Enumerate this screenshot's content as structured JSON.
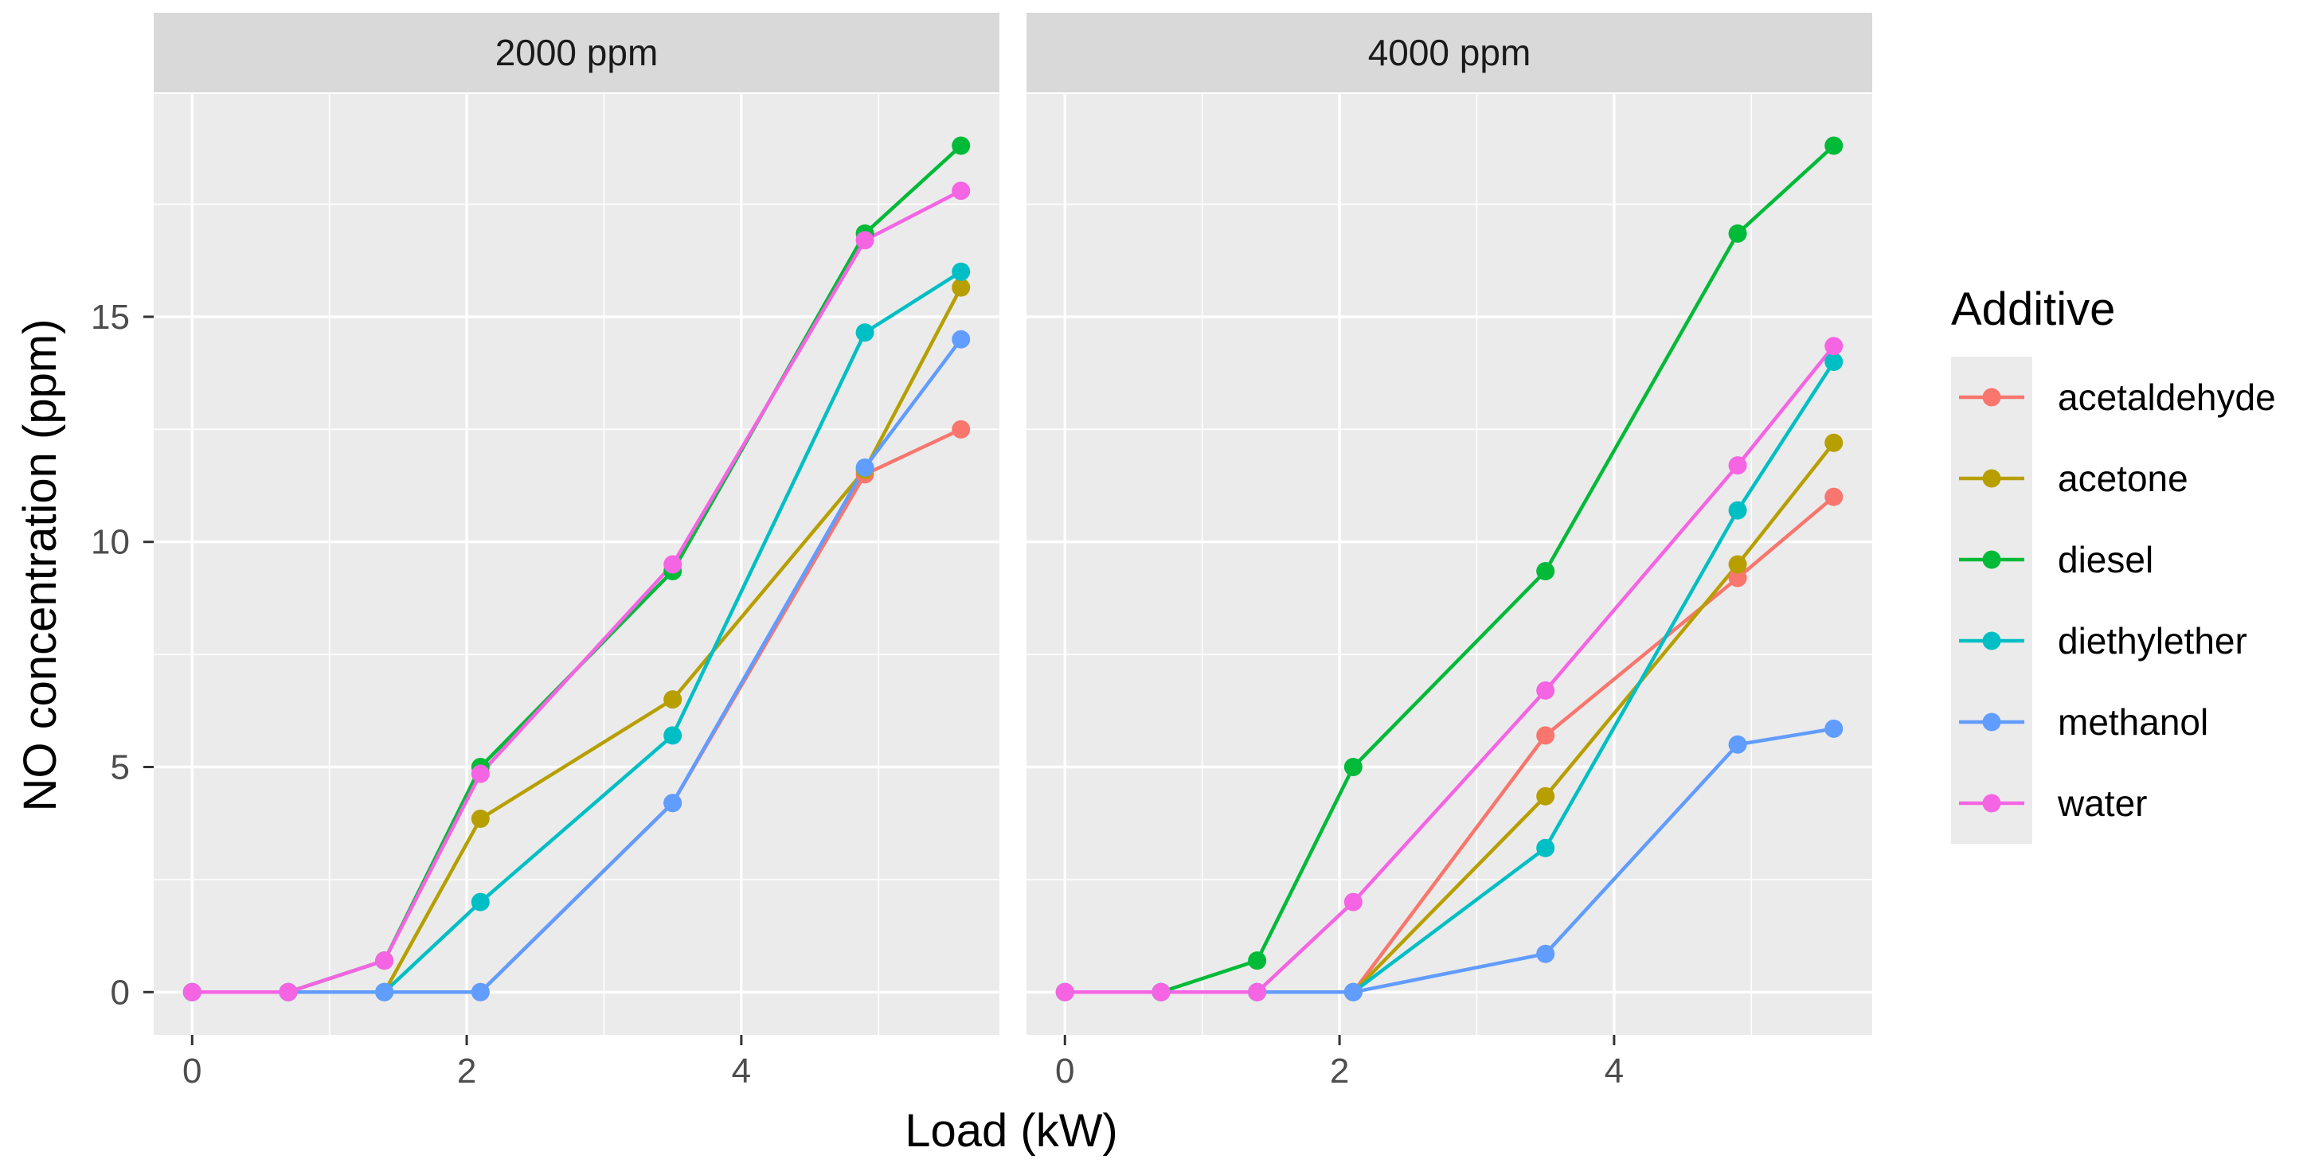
{
  "chart_data": {
    "type": "line",
    "xlabel": "Load (kW)",
    "ylabel": "NO concentration (ppm)",
    "xlim": [
      -0.28,
      5.88
    ],
    "ylim": [
      -0.95,
      19.95
    ],
    "x_ticks": [
      0,
      2,
      4
    ],
    "y_ticks": [
      0,
      5,
      10,
      15
    ],
    "legend_title": "Additive",
    "legend_position": "right",
    "series_colors": {
      "acetaldehyde": "#F8766D",
      "acetone": "#B79F00",
      "diesel": "#00BA38",
      "diethylether": "#00BFC4",
      "methanol": "#619CFF",
      "water": "#F564E3"
    },
    "panels": [
      {
        "title": "2000 ppm",
        "x": [
          0,
          0.7,
          1.4,
          2.1,
          3.5,
          4.9,
          5.6
        ],
        "series": [
          {
            "name": "acetaldehyde",
            "values": [
              0,
              0,
              0,
              0,
              4.2,
              11.5,
              12.5
            ]
          },
          {
            "name": "acetone",
            "values": [
              0,
              0,
              0,
              3.85,
              6.5,
              11.6,
              15.65
            ]
          },
          {
            "name": "diesel",
            "values": [
              0,
              0,
              0.7,
              5.0,
              9.35,
              16.85,
              18.8
            ]
          },
          {
            "name": "diethylether",
            "values": [
              0,
              0,
              0,
              2.0,
              5.7,
              14.65,
              16.0
            ]
          },
          {
            "name": "methanol",
            "values": [
              0,
              0,
              0,
              0,
              4.2,
              11.65,
              14.5
            ]
          },
          {
            "name": "water",
            "values": [
              0,
              0,
              0.7,
              4.85,
              9.5,
              16.7,
              17.8
            ]
          }
        ]
      },
      {
        "title": "4000 ppm",
        "x": [
          0,
          0.7,
          1.4,
          2.1,
          3.5,
          4.9,
          5.6
        ],
        "series": [
          {
            "name": "acetaldehyde",
            "values": [
              0,
              0,
              0,
              0,
              5.7,
              9.2,
              11.0
            ]
          },
          {
            "name": "acetone",
            "values": [
              0,
              0,
              0,
              0,
              4.35,
              9.5,
              12.2
            ]
          },
          {
            "name": "diesel",
            "values": [
              0,
              0,
              0.7,
              5.0,
              9.35,
              16.85,
              18.8
            ]
          },
          {
            "name": "diethylether",
            "values": [
              0,
              0,
              0,
              0,
              3.2,
              10.7,
              14.0
            ]
          },
          {
            "name": "methanol",
            "values": [
              0,
              0,
              0,
              0,
              0.85,
              5.5,
              5.85
            ]
          },
          {
            "name": "water",
            "values": [
              0,
              0,
              0,
              2.0,
              6.7,
              11.7,
              14.35
            ]
          }
        ]
      }
    ]
  }
}
